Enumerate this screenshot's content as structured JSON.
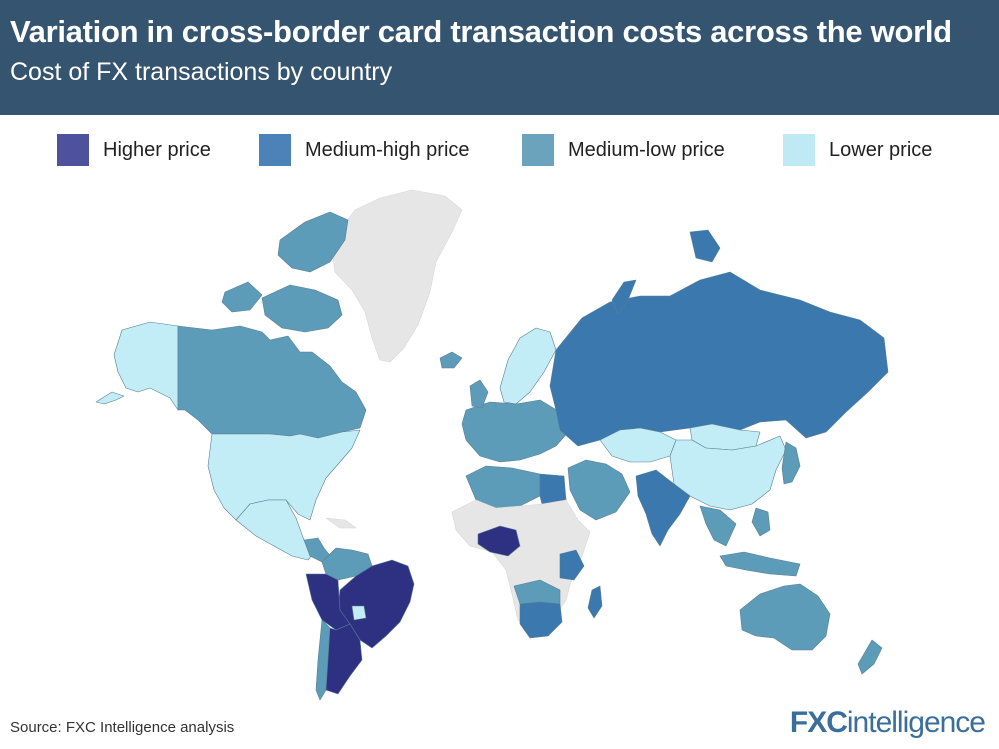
{
  "header": {
    "title": "Variation in cross-border card transaction costs across the world",
    "subtitle": "Cost of FX transactions by country"
  },
  "legend": [
    {
      "label": "Higher price",
      "color": "#4e519c"
    },
    {
      "label": "Medium-high price",
      "color": "#4b82b8"
    },
    {
      "label": "Medium-low price",
      "color": "#6aa3bb"
    },
    {
      "label": "Lower price",
      "color": "#bfeaf5"
    }
  ],
  "colors": {
    "higher": "#2e3082",
    "medium_high": "#3a78ad",
    "medium_low": "#5d9cb8",
    "lower": "#c2ecf6",
    "no_data": "#e6e6e6"
  },
  "regions": [
    {
      "name": "Greenland",
      "category": "no_data"
    },
    {
      "name": "Alaska",
      "category": "lower"
    },
    {
      "name": "Canada",
      "category": "medium_low"
    },
    {
      "name": "United States",
      "category": "lower"
    },
    {
      "name": "Mexico",
      "category": "lower"
    },
    {
      "name": "Central America",
      "category": "medium_low"
    },
    {
      "name": "Colombia",
      "category": "medium_low"
    },
    {
      "name": "Brazil",
      "category": "higher"
    },
    {
      "name": "Peru",
      "category": "higher"
    },
    {
      "name": "Argentina",
      "category": "higher"
    },
    {
      "name": "Chile",
      "category": "medium_low"
    },
    {
      "name": "Uruguay",
      "category": "lower"
    },
    {
      "name": "Russia",
      "category": "medium_high"
    },
    {
      "name": "Kazakhstan",
      "category": "lower"
    },
    {
      "name": "Mongolia",
      "category": "lower"
    },
    {
      "name": "China",
      "category": "lower"
    },
    {
      "name": "Japan",
      "category": "medium_low"
    },
    {
      "name": "India",
      "category": "medium_high"
    },
    {
      "name": "Southeast Asia",
      "category": "medium_low"
    },
    {
      "name": "Indonesia",
      "category": "medium_low"
    },
    {
      "name": "Australia",
      "category": "medium_low"
    },
    {
      "name": "New Zealand",
      "category": "medium_low"
    },
    {
      "name": "Europe",
      "category": "medium_low"
    },
    {
      "name": "Scandinavia",
      "category": "lower"
    },
    {
      "name": "Middle East",
      "category": "medium_low"
    },
    {
      "name": "North Africa",
      "category": "medium_low"
    },
    {
      "name": "Egypt",
      "category": "medium_high"
    },
    {
      "name": "Nigeria",
      "category": "higher"
    },
    {
      "name": "Sub-Saharan Africa",
      "category": "no_data"
    },
    {
      "name": "Kenya",
      "category": "medium_high"
    },
    {
      "name": "South Africa",
      "category": "medium_high"
    },
    {
      "name": "Madagascar",
      "category": "medium_high"
    }
  ],
  "footer": {
    "source": "Source: FXC Intelligence analysis",
    "logo_fx": "FXC",
    "logo_rest": "intelligence"
  }
}
